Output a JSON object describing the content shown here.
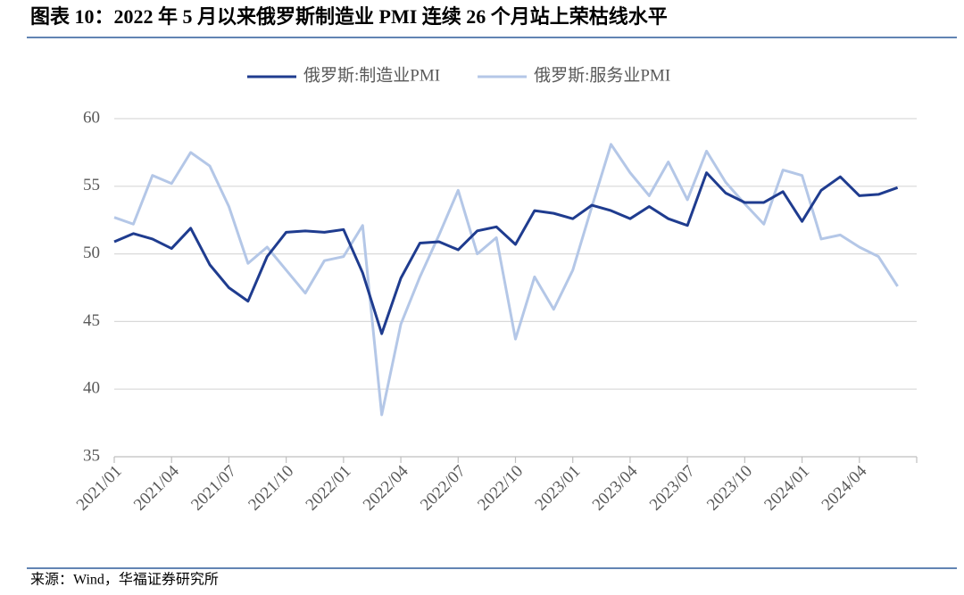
{
  "title": "图表 10：2022 年 5 月以来俄罗斯制造业 PMI 连续 26 个月站上荣枯线水平",
  "source": "来源：Wind，华福证券研究所",
  "chart_data": {
    "type": "line",
    "categories": [
      "2021/01",
      null,
      null,
      "2021/04",
      null,
      null,
      "2021/07",
      null,
      null,
      "2021/10",
      null,
      null,
      "2022/01",
      null,
      null,
      "2022/04",
      null,
      null,
      "2022/07",
      null,
      null,
      "2022/10",
      null,
      null,
      "2023/01",
      null,
      null,
      "2023/04",
      null,
      null,
      "2023/07",
      null,
      null,
      "2023/10",
      null,
      null,
      "2024/01",
      null,
      null,
      "2024/04",
      null,
      null
    ],
    "series": [
      {
        "name": "俄罗斯:制造业PMI",
        "color": "#1f3c8f",
        "values": [
          50.9,
          51.5,
          51.1,
          50.4,
          51.9,
          49.2,
          47.5,
          46.5,
          49.8,
          51.6,
          51.7,
          51.6,
          51.8,
          48.6,
          44.1,
          48.2,
          50.8,
          50.9,
          50.3,
          51.7,
          52.0,
          50.7,
          53.2,
          53.0,
          52.6,
          53.6,
          53.2,
          52.6,
          53.5,
          52.6,
          52.1,
          56.0,
          54.5,
          53.8,
          53.8,
          54.6,
          52.4,
          54.7,
          55.7,
          54.3,
          54.4,
          54.9
        ]
      },
      {
        "name": "俄罗斯:服务业PMI",
        "color": "#b4c7e7",
        "values": [
          52.7,
          52.2,
          55.8,
          55.2,
          57.5,
          56.5,
          53.5,
          49.3,
          50.5,
          48.8,
          47.1,
          49.5,
          49.8,
          52.1,
          38.1,
          44.8,
          48.3,
          51.4,
          54.7,
          50.0,
          51.2,
          43.7,
          48.3,
          45.9,
          48.8,
          53.5,
          58.1,
          56.0,
          54.3,
          56.8,
          54.0,
          57.6,
          55.3,
          53.7,
          52.2,
          56.2,
          55.8,
          51.1,
          51.4,
          50.5,
          49.8,
          47.6
        ]
      }
    ],
    "ylim": [
      35,
      60
    ],
    "yticks": [
      35,
      40,
      45,
      50,
      55,
      60
    ],
    "grid": true,
    "legend": "top"
  }
}
